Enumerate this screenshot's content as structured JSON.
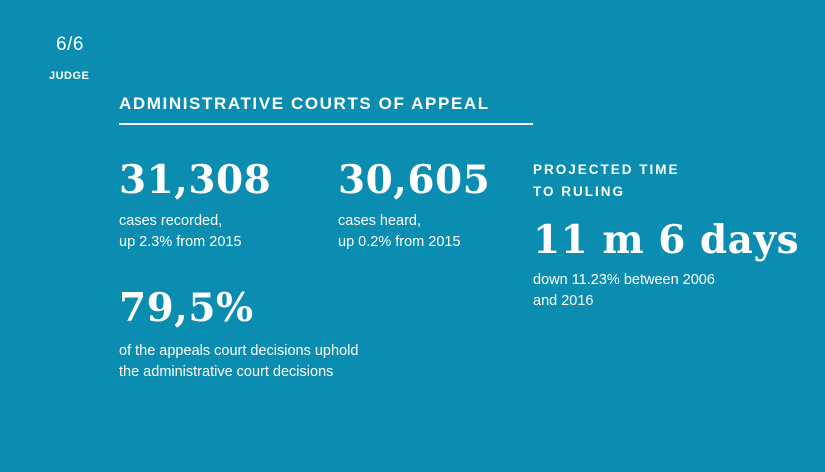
{
  "page": {
    "counter": "6/6",
    "section": "JUDGE"
  },
  "heading": "ADMINISTRATIVE COURTS OF APPEAL",
  "stats": {
    "recorded": {
      "value": "31,308",
      "line1": "cases recorded,",
      "line2": "up 2.3% from 2015"
    },
    "heard": {
      "value": "30,605",
      "line1": "cases heard,",
      "line2": "up 0.2% from 2015"
    },
    "upheld": {
      "value": "79,5%",
      "line1": "of the appeals court decisions uphold",
      "line2": "the administrative court decisions"
    },
    "time": {
      "label1": "PROJECTED TIME",
      "label2": "TO RULING",
      "value": "11 m 6 days",
      "line1": "down 11.23% between 2006",
      "line2": "and 2016"
    }
  },
  "colors": {
    "background": "#0a8db0",
    "text": "#ffffff"
  }
}
